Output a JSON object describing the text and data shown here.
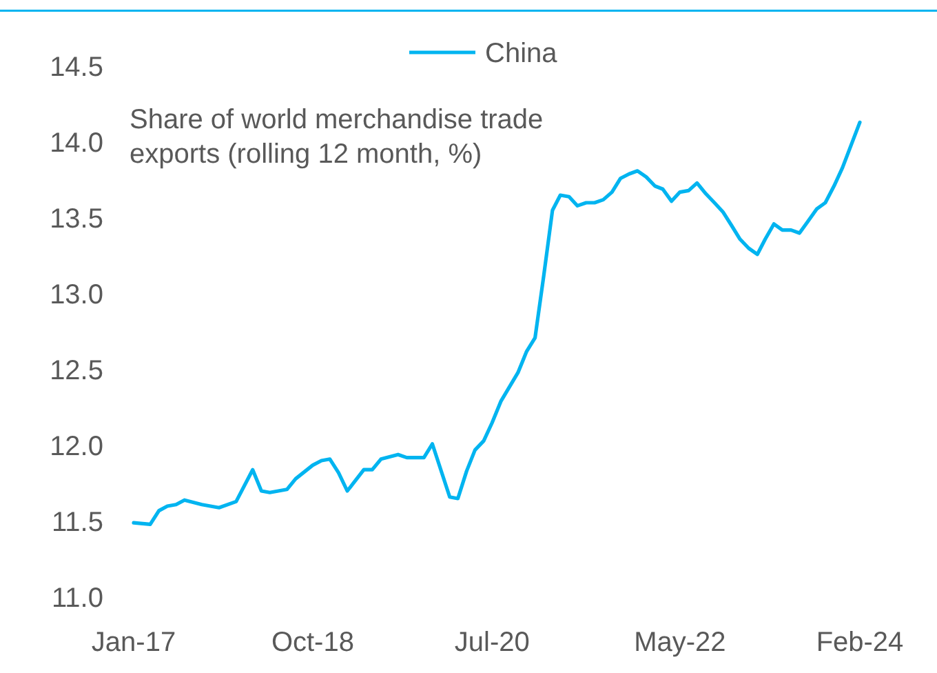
{
  "chart_data": {
    "type": "line",
    "ylabel": "Share of world merchandise trade exports (rolling 12 month, %)",
    "x": [
      "2017-01",
      "2017-03",
      "2017-04",
      "2017-05",
      "2017-06",
      "2017-07",
      "2017-09",
      "2017-11",
      "2018-01",
      "2018-03",
      "2018-04",
      "2018-05",
      "2018-07",
      "2018-08",
      "2018-10",
      "2018-11",
      "2018-12",
      "2019-01",
      "2019-02",
      "2019-04",
      "2019-05",
      "2019-06",
      "2019-08",
      "2019-09",
      "2019-11",
      "2019-12",
      "2020-02",
      "2020-03",
      "2020-04",
      "2020-05",
      "2020-06",
      "2020-07",
      "2020-08",
      "2020-10",
      "2020-11",
      "2020-12",
      "2021-01",
      "2021-02",
      "2021-03",
      "2021-04",
      "2021-05",
      "2021-06",
      "2021-07",
      "2021-08",
      "2021-09",
      "2021-10",
      "2021-11",
      "2021-12",
      "2022-01",
      "2022-02",
      "2022-03",
      "2022-04",
      "2022-05",
      "2022-06",
      "2022-07",
      "2022-08",
      "2022-09",
      "2022-10",
      "2022-11",
      "2022-12",
      "2023-01",
      "2023-02",
      "2023-03",
      "2023-04",
      "2023-05",
      "2023-06",
      "2023-07",
      "2023-08",
      "2023-09",
      "2023-10",
      "2023-11",
      "2023-12",
      "2024-01",
      "2024-02"
    ],
    "series": [
      {
        "name": "China",
        "color": "#00b4f0",
        "values": [
          11.49,
          11.48,
          11.57,
          11.6,
          11.61,
          11.64,
          11.61,
          11.59,
          11.63,
          11.84,
          11.7,
          11.69,
          11.71,
          11.78,
          11.87,
          11.9,
          11.91,
          11.82,
          11.7,
          11.84,
          11.84,
          11.91,
          11.94,
          11.92,
          11.92,
          12.01,
          11.66,
          11.65,
          11.83,
          11.97,
          12.03,
          12.15,
          12.29,
          12.48,
          12.62,
          12.71,
          13.12,
          13.55,
          13.65,
          13.64,
          13.58,
          13.6,
          13.6,
          13.62,
          13.67,
          13.76,
          13.79,
          13.81,
          13.77,
          13.71,
          13.69,
          13.61,
          13.67,
          13.68,
          13.73,
          13.66,
          13.6,
          13.54,
          13.45,
          13.36,
          13.3,
          13.26,
          13.36,
          13.46,
          13.42,
          13.42,
          13.4,
          13.48,
          13.56,
          13.6,
          13.71,
          13.83,
          13.98,
          14.13
        ]
      }
    ],
    "xlim": [
      "2017-01",
      "2024-02"
    ],
    "xticks": [
      {
        "value": "2017-01",
        "label": "Jan-17"
      },
      {
        "value": "2018-10",
        "label": "Oct-18"
      },
      {
        "value": "2020-07",
        "label": "Jul-20"
      },
      {
        "value": "2022-05",
        "label": "May-22"
      },
      {
        "value": "2024-02",
        "label": "Feb-24"
      }
    ],
    "ylim": [
      11.0,
      14.5
    ],
    "yticks": [
      {
        "value": 11,
        "label": "11.0"
      },
      11.5,
      {
        "value": 12,
        "label": "12.0"
      },
      12.5,
      {
        "value": 13,
        "label": "13.0"
      },
      13.5,
      {
        "value": 14,
        "label": "14.0"
      },
      14.5
    ],
    "grid": false,
    "legend": "top",
    "line_style": "solid",
    "marker": "none"
  }
}
